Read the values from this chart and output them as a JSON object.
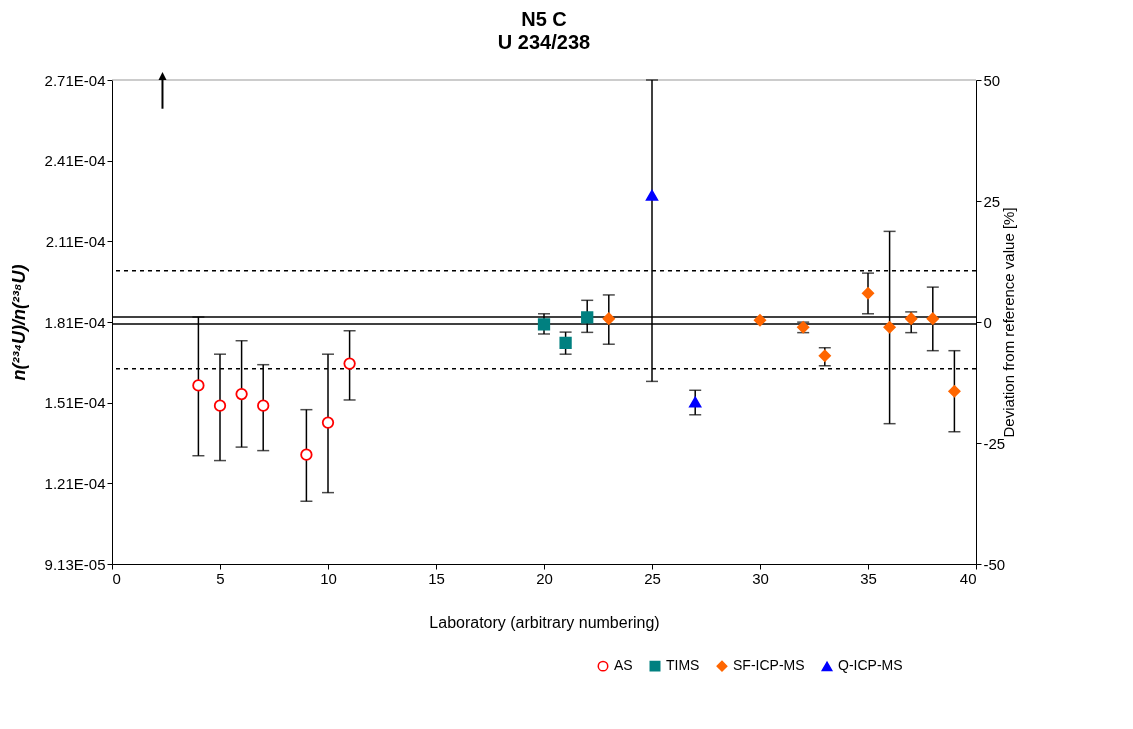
{
  "chart_data": {
    "type": "scatter",
    "title": "N5 C",
    "subtitle": "U 234/238",
    "xlabel": "Laboratory (arbitrary numbering)",
    "ylabel": "n(²³⁴U)/n(²³⁸U)",
    "y2label": "Deviation from reference value [%]",
    "xlim": [
      0,
      40
    ],
    "xticks": [
      0,
      5,
      10,
      15,
      20,
      25,
      30,
      35,
      40
    ],
    "ylim": [
      9.13e-05,
      0.000271
    ],
    "yticks": [
      {
        "value": 9.13e-05,
        "label": "9.13E-05"
      },
      {
        "value": 0.00012125,
        "label": "1.21E-04"
      },
      {
        "value": 0.0001512,
        "label": "1.51E-04"
      },
      {
        "value": 0.00018115,
        "label": "1.81E-04"
      },
      {
        "value": 0.0002111,
        "label": "2.11E-04"
      },
      {
        "value": 0.00024105,
        "label": "2.41E-04"
      },
      {
        "value": 0.000271,
        "label": "2.71E-04"
      }
    ],
    "y2lim": [
      -50,
      50
    ],
    "y2ticks": [
      -50,
      -25,
      0,
      25,
      50
    ],
    "grid": false,
    "legend": "bottom right",
    "series": [
      {
        "name": "AS",
        "color": "#ff0000",
        "marker": "circle",
        "x": [
          4,
          5,
          6,
          7,
          9,
          10,
          11
        ],
        "values": [
          0.0001576,
          0.0001501,
          0.0001544,
          0.0001501,
          0.0001319,
          0.0001438,
          0.0001657
        ],
        "errors": [
          [
            0.0001315,
            0.000183
          ],
          [
            0.0001297,
            0.0001692
          ],
          [
            0.0001347,
            0.0001742
          ],
          [
            0.0001334,
            0.0001653
          ],
          [
            0.0001146,
            0.0001486
          ],
          [
            0.0001178,
            0.0001692
          ],
          [
            0.0001522,
            0.0001779
          ]
        ]
      },
      {
        "name": "TIMS",
        "color": "#008080",
        "marker": "square",
        "x": [
          20,
          21,
          22
        ],
        "values": [
          0.0001803,
          0.0001734,
          0.0001829
        ],
        "errors": [
          [
            0.0001767,
            0.0001842
          ],
          [
            0.0001692,
            0.0001774
          ],
          [
            0.0001773,
            0.0001892
          ]
        ]
      },
      {
        "name": "SF-ICP-MS",
        "color": "#ff6600",
        "marker": "diamond",
        "x": [
          23,
          30,
          32,
          33,
          35,
          36,
          37,
          38,
          39
        ],
        "values": [
          0.0001824,
          0.0001818,
          0.0001792,
          0.0001686,
          0.0001918,
          0.0001792,
          0.0001824,
          0.0001824,
          0.0001554
        ],
        "errors": [
          [
            0.0001729,
            0.0001912
          ],
          null,
          [
            0.0001772,
            0.0001811
          ],
          [
            0.0001649,
            0.0001716
          ],
          [
            0.0001842,
            0.0001993
          ],
          [
            0.0001434,
            0.0002148
          ],
          [
            0.0001772,
            0.0001849
          ],
          [
            0.0001705,
            0.0001941
          ],
          [
            0.0001404,
            0.0001705
          ]
        ]
      },
      {
        "name": "Q-ICP-MS",
        "color": "#0000ff",
        "marker": "triangle",
        "x": [
          25,
          27
        ],
        "values": [
          0.0002282,
          0.0001514
        ],
        "errors": [
          [
            0.0001591,
            0.000271
          ],
          [
            0.0001467,
            0.0001558
          ]
        ]
      }
    ],
    "ref_lines": [
      {
        "axis": "y",
        "value": 0.000183,
        "color": "#000000",
        "line_style": "solid"
      },
      {
        "axis": "y",
        "value": 0.0001804,
        "color": "#000000",
        "line_style": "solid"
      },
      {
        "axis": "y",
        "value": 0.0002002,
        "color": "#000000",
        "line_style": "dashed"
      },
      {
        "axis": "y",
        "value": 0.0001638,
        "color": "#000000",
        "line_style": "dashed"
      }
    ]
  }
}
